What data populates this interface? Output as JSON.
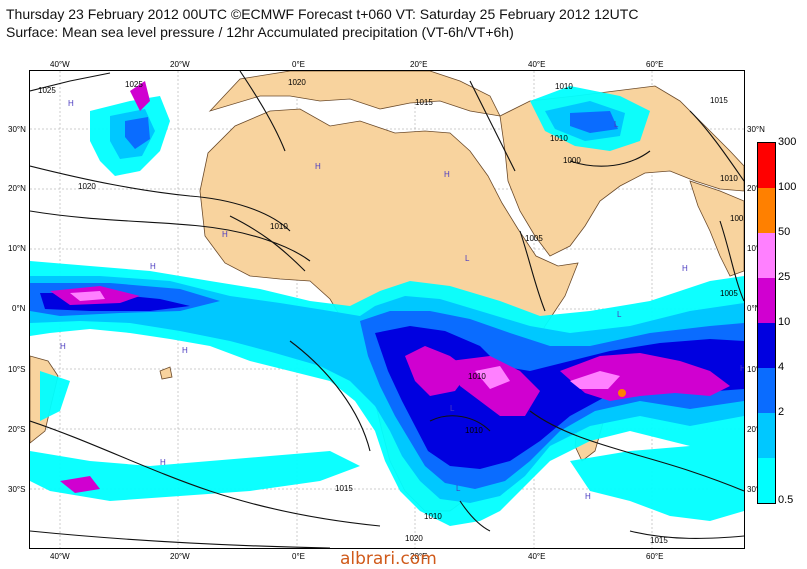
{
  "header": {
    "line1": "Thursday 23 February 2012 00UTC ©ECMWF Forecast t+060 VT: Saturday 25 February 2012 12UTC",
    "line2": "Surface: Mean sea level pressure / 12hr Accumulated precipitation (VT-6h/VT+6h)"
  },
  "map": {
    "lat_labels": [
      "30°N",
      "20°N",
      "10°N",
      "0°N",
      "10°S",
      "20°S",
      "30°S"
    ],
    "lon_labels": [
      "40°W",
      "20°W",
      "0°E",
      "20°E",
      "40°E",
      "60°E"
    ],
    "isobar_labels": [
      "1025",
      "1025",
      "1020",
      "1020",
      "1015",
      "1010",
      "1010",
      "1015",
      "1010",
      "1010",
      "1000",
      "1005",
      "1005",
      "1005",
      "1015",
      "1010",
      "1010",
      "1010",
      "1020",
      "1015"
    ],
    "pressure_markers": [
      "H",
      "H",
      "H",
      "H",
      "H",
      "L",
      "L",
      "H",
      "H",
      "L",
      "H",
      "H",
      "L",
      "L",
      "H",
      "H"
    ],
    "land_color": "#f8d39e",
    "ocean_color": "#ffffff"
  },
  "legend": {
    "labels": [
      "300",
      "100",
      "50",
      "25",
      "10",
      "4",
      "2",
      "0.5"
    ],
    "colors": [
      "#ff0000",
      "#ff8000",
      "#ff80ff",
      "#d000d0",
      "#0000e0",
      "#0a6cff",
      "#00c8ff",
      "#00ffff"
    ]
  },
  "footer": {
    "watermark": "albrari.com"
  }
}
